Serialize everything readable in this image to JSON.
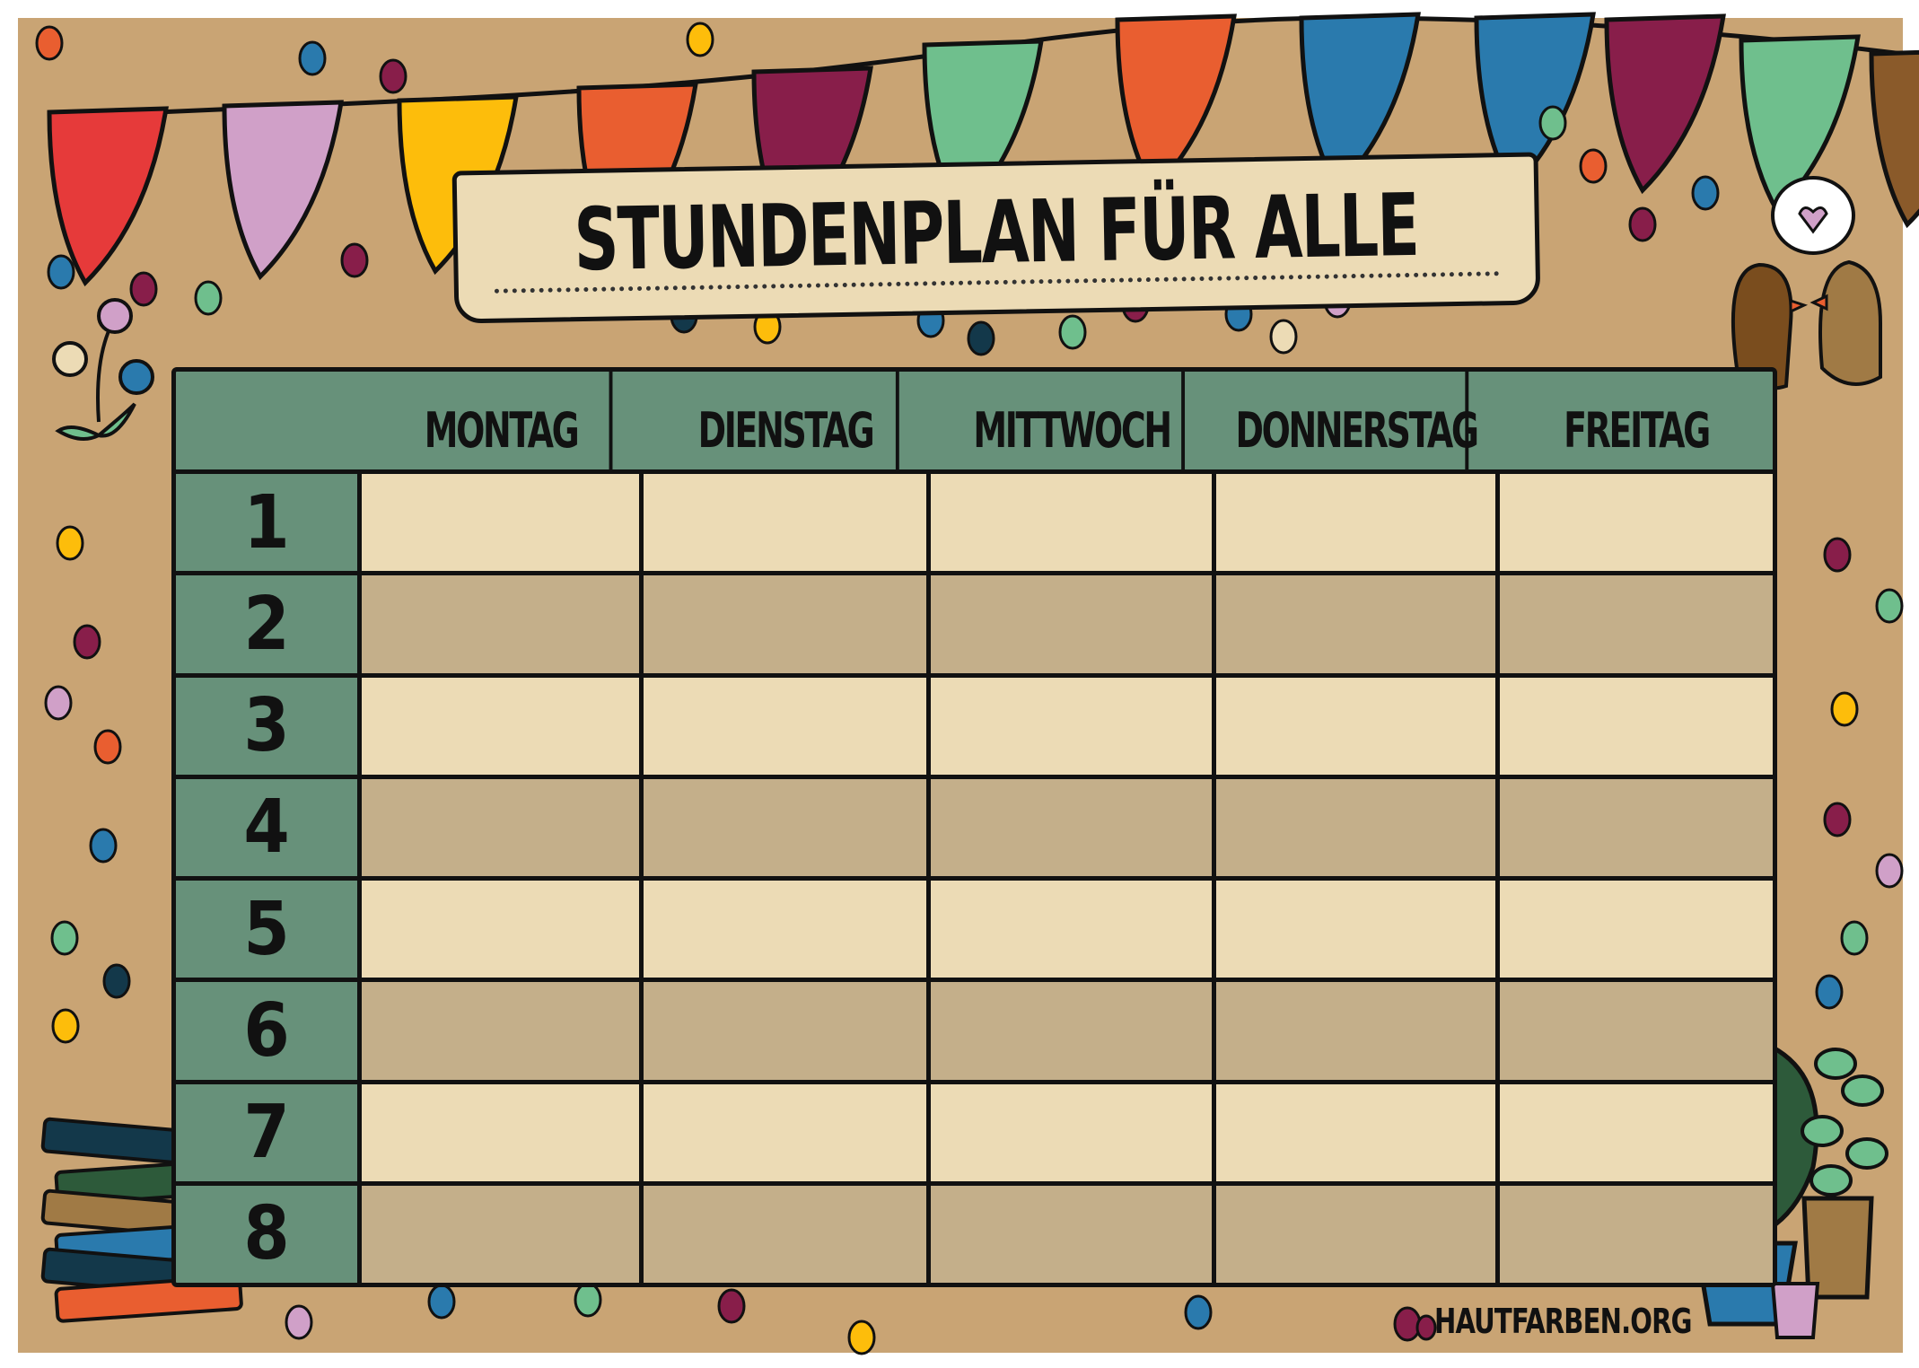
{
  "title": "STUNDENPLAN FÜR ALLE",
  "table": {
    "days": [
      "MONTAG",
      "DIENSTAG",
      "MITTWOCH",
      "DONNERSTAG",
      "FREITAG"
    ],
    "periods": [
      "1",
      "2",
      "3",
      "4",
      "5",
      "6",
      "7",
      "8"
    ]
  },
  "footer": "HAUTFARBEN.ORG",
  "colors": {
    "background": "#c9a474",
    "header_green": "#67917a",
    "row_light": "#ecdbb5",
    "row_dark": "#c4af8a",
    "outline": "#111111"
  }
}
